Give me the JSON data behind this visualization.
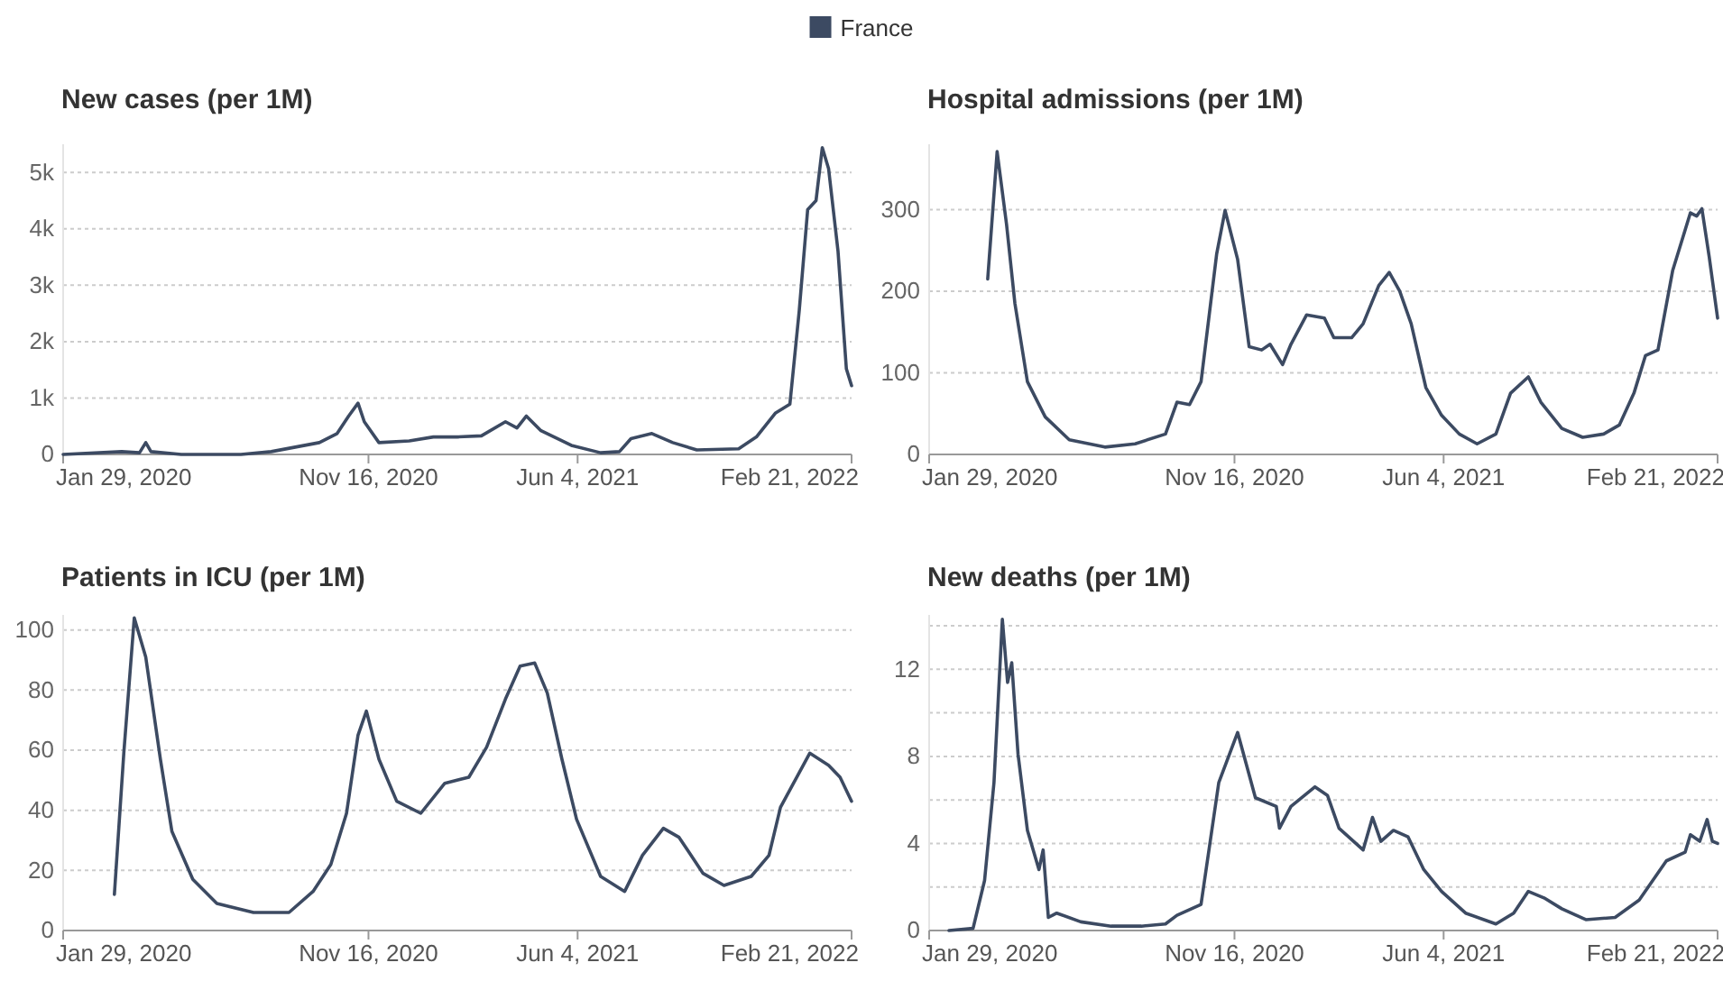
{
  "chart_data": [
    {
      "type": "line",
      "title": "New cases (per 1M)",
      "legend": "top",
      "grid": "y",
      "xlim": [
        "2020-01-29",
        "2022-02-21"
      ],
      "xticks": [
        {
          "value": "2020-01-29",
          "label": "Jan 29, 2020"
        },
        {
          "value": "2020-11-16",
          "label": "Nov 16, 2020"
        },
        {
          "value": "2021-06-04",
          "label": "Jun 4, 2021"
        },
        {
          "value": "2022-02-21",
          "label": "Feb 21, 2022"
        }
      ],
      "ylim": [
        0,
        5500
      ],
      "yticks": [
        0,
        {
          "value": 1000,
          "label": "1k"
        },
        {
          "value": 2000,
          "label": "2k"
        },
        {
          "value": 3000,
          "label": "3k"
        },
        {
          "value": 4000,
          "label": "4k"
        },
        {
          "value": 5000,
          "label": "5k"
        }
      ],
      "x": [
        "2020-01-29",
        "2020-03-25",
        "2020-04-11",
        "2020-04-17",
        "2020-04-22",
        "2020-05-21",
        "2020-07-17",
        "2020-08-15",
        "2020-09-30",
        "2020-10-17",
        "2020-10-28",
        "2020-11-06",
        "2020-11-12",
        "2020-11-26",
        "2020-12-25",
        "2021-01-17",
        "2021-02-09",
        "2021-03-04",
        "2021-03-27",
        "2021-04-07",
        "2021-04-16",
        "2021-04-30",
        "2021-05-29",
        "2021-06-26",
        "2021-07-14",
        "2021-07-25",
        "2021-08-14",
        "2021-09-03",
        "2021-09-26",
        "2021-11-05",
        "2021-11-22",
        "2021-12-10",
        "2021-12-24",
        "2022-01-02",
        "2022-01-10",
        "2022-01-18",
        "2022-01-24",
        "2022-01-30",
        "2022-02-08",
        "2022-02-14",
        "2022-02-16",
        "2022-02-21"
      ],
      "series": [
        {
          "name": "France",
          "color": "#3c4a62",
          "values": [
            0,
            50,
            30,
            210,
            50,
            0,
            0,
            50,
            210,
            370,
            680,
            910,
            580,
            210,
            240,
            310,
            310,
            330,
            580,
            470,
            680,
            420,
            160,
            30,
            50,
            280,
            370,
            210,
            80,
            100,
            310,
            730,
            890,
            2560,
            4340,
            4500,
            5440,
            5070,
            3610,
            2040,
            1520,
            1220
          ]
        }
      ]
    },
    {
      "type": "line",
      "title": "Hospital admissions (per 1M)",
      "grid": "y",
      "xlim": [
        "2020-01-29",
        "2022-02-21"
      ],
      "xticks": [
        {
          "value": "2020-01-29",
          "label": "Jan 29, 2020"
        },
        {
          "value": "2020-11-16",
          "label": "Nov 16, 2020"
        },
        {
          "value": "2021-06-04",
          "label": "Jun 4, 2021"
        },
        {
          "value": "2022-02-21",
          "label": "Feb 21, 2022"
        }
      ],
      "ylim": [
        0,
        380
      ],
      "yticks": [
        0,
        100,
        200,
        300
      ],
      "x": [
        "2020-03-25",
        "2020-04-03",
        "2020-04-12",
        "2020-04-20",
        "2020-05-02",
        "2020-05-19",
        "2020-06-11",
        "2020-07-15",
        "2020-08-13",
        "2020-09-11",
        "2020-09-22",
        "2020-10-04",
        "2020-10-15",
        "2020-10-30",
        "2020-11-07",
        "2020-11-19",
        "2020-11-30",
        "2020-12-12",
        "2020-12-20",
        "2021-01-01",
        "2021-01-09",
        "2021-01-24",
        "2021-02-10",
        "2021-02-19",
        "2021-03-08",
        "2021-03-19",
        "2021-04-03",
        "2021-04-13",
        "2021-04-23",
        "2021-05-04",
        "2021-05-18",
        "2021-06-02",
        "2021-06-19",
        "2021-07-06",
        "2021-07-24",
        "2021-08-07",
        "2021-08-24",
        "2021-09-05",
        "2021-09-25",
        "2021-10-15",
        "2021-11-04",
        "2021-11-19",
        "2021-12-03",
        "2021-12-14",
        "2021-12-26",
        "2022-01-09",
        "2022-01-26",
        "2022-02-01",
        "2022-02-06",
        "2022-02-13",
        "2022-02-21"
      ],
      "series": [
        {
          "color": "#3c4a62",
          "values": [
            215,
            371,
            282,
            185,
            89,
            46,
            18,
            9,
            13,
            25,
            64,
            61,
            89,
            246,
            299,
            239,
            132,
            128,
            135,
            110,
            135,
            171,
            167,
            143,
            143,
            160,
            207,
            223,
            200,
            160,
            82,
            48,
            25,
            13,
            25,
            75,
            95,
            64,
            32,
            21,
            25,
            36,
            75,
            121,
            128,
            225,
            296,
            292,
            301,
            242,
            167
          ]
        }
      ]
    },
    {
      "type": "line",
      "title": "Patients in ICU (per 1M)",
      "grid": "y",
      "xlim": [
        "2020-01-29",
        "2022-02-21"
      ],
      "xticks": [
        {
          "value": "2020-01-29",
          "label": "Jan 29, 2020"
        },
        {
          "value": "2020-11-16",
          "label": "Nov 16, 2020"
        },
        {
          "value": "2021-06-04",
          "label": "Jun 4, 2021"
        },
        {
          "value": "2022-02-21",
          "label": "Feb 21, 2022"
        }
      ],
      "ylim": [
        0,
        105
      ],
      "yticks": [
        0,
        20,
        40,
        60,
        80,
        100
      ],
      "x": [
        "2020-03-18",
        "2020-03-27",
        "2020-04-06",
        "2020-04-17",
        "2020-05-01",
        "2020-05-12",
        "2020-06-01",
        "2020-06-24",
        "2020-07-29",
        "2020-09-01",
        "2020-09-24",
        "2020-10-11",
        "2020-10-26",
        "2020-11-06",
        "2020-11-14",
        "2020-11-26",
        "2020-12-13",
        "2021-01-05",
        "2021-01-28",
        "2021-02-20",
        "2021-03-09",
        "2021-03-27",
        "2021-04-10",
        "2021-04-24",
        "2021-05-06",
        "2021-05-20",
        "2021-06-03",
        "2021-06-26",
        "2021-07-19",
        "2021-08-05",
        "2021-08-25",
        "2021-09-09",
        "2021-10-02",
        "2021-10-22",
        "2021-11-17",
        "2021-12-04",
        "2021-12-15",
        "2022-01-12",
        "2022-01-30",
        "2022-02-10",
        "2022-02-21"
      ],
      "series": [
        {
          "color": "#3c4a62",
          "values": [
            12,
            59,
            104,
            91,
            57,
            33,
            17,
            9,
            6,
            6,
            13,
            22,
            39,
            65,
            73,
            57,
            43,
            39,
            49,
            51,
            61,
            77,
            88,
            89,
            79,
            57,
            37,
            18,
            13,
            25,
            34,
            31,
            19,
            15,
            18,
            25,
            41,
            59,
            55,
            51,
            43
          ]
        }
      ]
    },
    {
      "type": "line",
      "title": "New deaths (per 1M)",
      "grid": "y",
      "xlim": [
        "2020-01-29",
        "2022-02-21"
      ],
      "xticks": [
        {
          "value": "2020-01-29",
          "label": "Jan 29, 2020"
        },
        {
          "value": "2020-11-16",
          "label": "Nov 16, 2020"
        },
        {
          "value": "2021-06-04",
          "label": "Jun 4, 2021"
        },
        {
          "value": "2022-02-21",
          "label": "Feb 21, 2022"
        }
      ],
      "ylim": [
        0,
        14.5
      ],
      "yticks": [
        0,
        {
          "value": 2,
          "label": null
        },
        4,
        {
          "value": 6,
          "label": null
        },
        8,
        {
          "value": 10,
          "label": null
        },
        12,
        {
          "value": 14,
          "label": null
        }
      ],
      "x": [
        "2020-02-17",
        "2020-03-11",
        "2020-03-22",
        "2020-03-31",
        "2020-04-08",
        "2020-04-13",
        "2020-04-17",
        "2020-04-23",
        "2020-05-02",
        "2020-05-13",
        "2020-05-17",
        "2020-05-22",
        "2020-05-30",
        "2020-06-22",
        "2020-07-21",
        "2020-08-19",
        "2020-09-11",
        "2020-09-22",
        "2020-10-15",
        "2020-11-01",
        "2020-11-19",
        "2020-12-06",
        "2020-12-26",
        "2020-12-29",
        "2021-01-09",
        "2021-02-01",
        "2021-02-13",
        "2021-02-24",
        "2021-03-19",
        "2021-03-28",
        "2021-04-05",
        "2021-04-17",
        "2021-05-01",
        "2021-05-16",
        "2021-06-02",
        "2021-06-25",
        "2021-07-24",
        "2021-08-10",
        "2021-08-24",
        "2021-09-08",
        "2021-09-25",
        "2021-10-18",
        "2021-11-15",
        "2021-12-08",
        "2022-01-03",
        "2022-01-21",
        "2022-01-26",
        "2022-02-04",
        "2022-02-11",
        "2022-02-16",
        "2022-02-21"
      ],
      "series": [
        {
          "color": "#3c4a62",
          "values": [
            0,
            0.1,
            2.3,
            6.8,
            14.3,
            11.4,
            12.3,
            8.1,
            4.6,
            2.8,
            3.7,
            0.6,
            0.8,
            0.4,
            0.2,
            0.2,
            0.3,
            0.7,
            1.2,
            6.8,
            9.1,
            6.1,
            5.7,
            4.7,
            5.7,
            6.6,
            6.2,
            4.7,
            3.7,
            5.2,
            4.1,
            4.6,
            4.3,
            2.8,
            1.8,
            0.8,
            0.3,
            0.8,
            1.8,
            1.5,
            1.0,
            0.5,
            0.6,
            1.4,
            3.2,
            3.6,
            4.4,
            4.1,
            5.1,
            4.1,
            4.0
          ]
        }
      ]
    }
  ]
}
